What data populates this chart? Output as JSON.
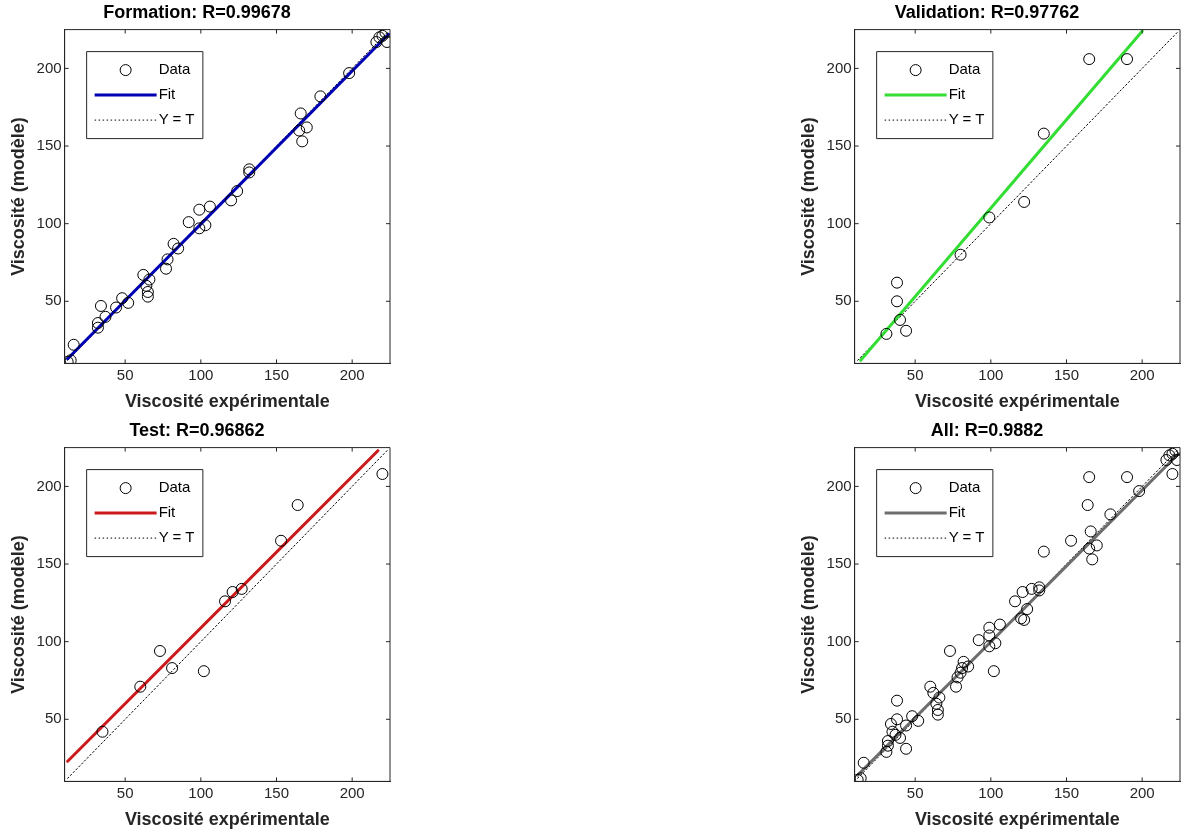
{
  "chart_data": [
    {
      "type": "scatter",
      "title": "Formation: R=0.99678",
      "xlabel": "Viscosité expérimentale",
      "ylabel": "Viscosité (modèle)",
      "xlim": [
        10,
        225
      ],
      "ylim": [
        10,
        225
      ],
      "xticks": [
        50,
        100,
        150,
        200
      ],
      "yticks": [
        50,
        100,
        150,
        200
      ],
      "legend": "top left",
      "series": [
        {
          "name": "Data",
          "type": "scatter",
          "marker": "circle",
          "color": "#000000",
          "x": [
            218,
            220,
            222,
            223,
            216,
            198,
            179,
            166,
            170,
            165,
            167,
            132,
            132,
            124,
            120,
            106,
            99,
            92,
            103,
            99,
            82,
            85,
            78,
            77,
            62,
            66,
            64,
            65,
            65,
            48,
            52,
            44,
            34,
            37,
            32,
            32,
            16,
            12,
            14
          ],
          "values": [
            220,
            221,
            223,
            217,
            217,
            197,
            182,
            171,
            162,
            160,
            153,
            135,
            133,
            121,
            115,
            111,
            109,
            101,
            99,
            97,
            87,
            84,
            77,
            71,
            67,
            64,
            60,
            56,
            53,
            52,
            49,
            46,
            47,
            40,
            33,
            36,
            22,
            11,
            12
          ]
        },
        {
          "name": "Fit",
          "type": "line",
          "marker": "none",
          "color": "#0000b4",
          "x": [
            12,
            224
          ],
          "values": [
            13,
            222
          ]
        },
        {
          "name": "Y = T",
          "type": "line",
          "marker": "none",
          "line_style": "dotted",
          "color": "#000000",
          "x": [
            12,
            224
          ],
          "values": [
            12,
            224
          ]
        }
      ]
    },
    {
      "type": "scatter",
      "title": "Validation: R=0.97762",
      "xlabel": "Viscosité expérimentale",
      "ylabel": "Viscosité (modèle)",
      "xlim": [
        10,
        225
      ],
      "ylim": [
        10,
        225
      ],
      "xticks": [
        50,
        100,
        150,
        200
      ],
      "yticks": [
        50,
        100,
        150,
        200
      ],
      "legend": "top left",
      "series": [
        {
          "name": "Data",
          "type": "scatter",
          "marker": "circle",
          "color": "#000000",
          "x": [
            165,
            190,
            135,
            122,
            99,
            80,
            38,
            38,
            40,
            44,
            31
          ],
          "values": [
            206,
            206,
            158,
            114,
            104,
            80,
            62,
            50,
            38,
            31,
            29
          ]
        },
        {
          "name": "Fit",
          "type": "line",
          "marker": "none",
          "color": "#33dd33",
          "x": [
            14,
            200
          ],
          "values": [
            12,
            224
          ]
        },
        {
          "name": "Y = T",
          "type": "line",
          "marker": "none",
          "line_style": "dotted",
          "color": "#000000",
          "x": [
            12,
            224
          ],
          "values": [
            12,
            224
          ]
        }
      ]
    },
    {
      "type": "scatter",
      "title": "Test: R=0.96862",
      "xlabel": "Viscosité expérimentale",
      "ylabel": "Viscosité (modèle)",
      "xlim": [
        10,
        225
      ],
      "ylim": [
        10,
        225
      ],
      "xticks": [
        50,
        100,
        150,
        200
      ],
      "yticks": [
        50,
        100,
        150,
        200
      ],
      "legend": "top left",
      "series": [
        {
          "name": "Data",
          "type": "scatter",
          "marker": "circle",
          "color": "#000000",
          "x": [
            220,
            164,
            153,
            127,
            121,
            116,
            73,
            81,
            102,
            60,
            35
          ],
          "values": [
            208,
            188,
            165,
            134,
            132,
            126,
            94,
            83,
            81,
            71,
            42
          ]
        },
        {
          "name": "Fit",
          "type": "line",
          "marker": "none",
          "color": "#cc1a1a",
          "x": [
            12,
            217
          ],
          "values": [
            23,
            223
          ]
        },
        {
          "name": "Y = T",
          "type": "line",
          "marker": "none",
          "line_style": "dotted",
          "color": "#000000",
          "x": [
            12,
            224
          ],
          "values": [
            12,
            224
          ]
        }
      ]
    },
    {
      "type": "scatter",
      "title": "All: R=0.9882",
      "xlabel": "Viscosité expérimentale",
      "ylabel": "Viscosité (modèle)",
      "xlim": [
        10,
        225
      ],
      "ylim": [
        10,
        225
      ],
      "xticks": [
        50,
        100,
        150,
        200
      ],
      "yticks": [
        50,
        100,
        150,
        200
      ],
      "legend": "top left",
      "series": [
        {
          "name": "Data",
          "type": "scatter",
          "marker": "circle",
          "color": "#000000",
          "x": [
            218,
            220,
            222,
            223,
            216,
            198,
            179,
            166,
            170,
            165,
            167,
            132,
            132,
            124,
            120,
            106,
            99,
            92,
            103,
            99,
            82,
            85,
            78,
            77,
            62,
            66,
            64,
            65,
            65,
            48,
            52,
            44,
            34,
            37,
            32,
            32,
            16,
            12,
            14,
            165,
            190,
            135,
            122,
            99,
            80,
            38,
            38,
            40,
            44,
            31,
            220,
            164,
            153,
            127,
            121,
            116,
            73,
            81,
            102,
            60,
            35
          ],
          "values": [
            220,
            221,
            223,
            217,
            217,
            197,
            182,
            171,
            162,
            160,
            153,
            135,
            133,
            121,
            115,
            111,
            109,
            101,
            99,
            97,
            87,
            84,
            77,
            71,
            67,
            64,
            60,
            56,
            53,
            52,
            49,
            46,
            47,
            40,
            33,
            36,
            22,
            11,
            12,
            206,
            206,
            158,
            114,
            104,
            80,
            62,
            50,
            38,
            31,
            29,
            208,
            188,
            165,
            134,
            132,
            126,
            94,
            83,
            81,
            71,
            42
          ]
        },
        {
          "name": "Fit",
          "type": "line",
          "marker": "none",
          "color": "#6e6e6e",
          "x": [
            12,
            224
          ],
          "values": [
            14,
            221
          ]
        },
        {
          "name": "Y = T",
          "type": "line",
          "marker": "none",
          "line_style": "dotted",
          "color": "#000000",
          "x": [
            12,
            224
          ],
          "values": [
            12,
            224
          ]
        }
      ]
    }
  ]
}
